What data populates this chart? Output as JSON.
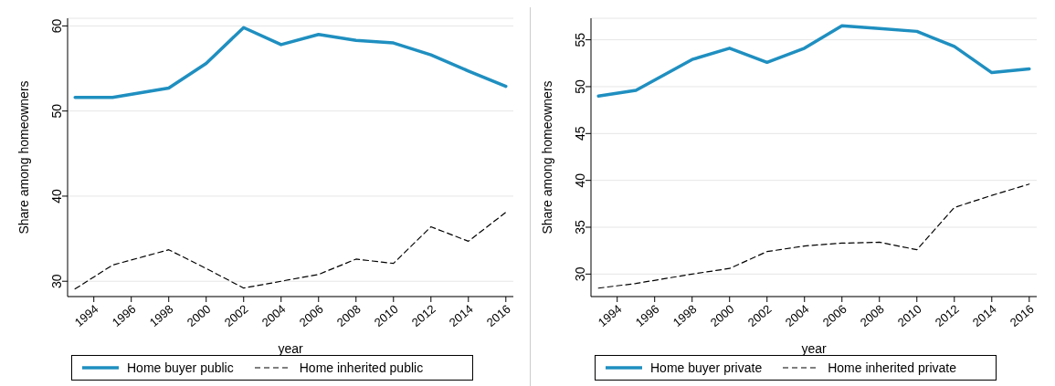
{
  "chart_data": [
    {
      "type": "line",
      "xlabel": "year",
      "ylabel": "Share among homeowners",
      "x": [
        1993,
        1995,
        1998,
        2000,
        2002,
        2004,
        2006,
        2008,
        2010,
        2012,
        2014,
        2016
      ],
      "xlim": [
        1992.6,
        2016.4
      ],
      "xticks": [
        1994,
        1996,
        1998,
        2000,
        2002,
        2004,
        2006,
        2008,
        2010,
        2012,
        2014,
        2016
      ],
      "ylim": [
        28.2,
        60.9
      ],
      "yticks": [
        30,
        40,
        50,
        60
      ],
      "grid": "y",
      "legend": "bottom",
      "marker": "none",
      "series": [
        {
          "name": "Home buyer public",
          "color": "#1f8fc0",
          "line_style": "solid",
          "values": [
            51.6,
            51.6,
            52.7,
            55.6,
            59.8,
            57.8,
            59.0,
            58.3,
            58.0,
            56.6,
            54.7,
            52.9
          ]
        },
        {
          "name": "Home inherited public",
          "color": "#000000",
          "line_style": "dashed",
          "values": [
            29.1,
            31.9,
            33.7,
            31.5,
            29.2,
            30.0,
            30.8,
            32.6,
            32.1,
            36.4,
            34.7,
            38.1
          ]
        }
      ]
    },
    {
      "type": "line",
      "xlabel": "year",
      "ylabel": "Share among homeowners",
      "x": [
        1993,
        1995,
        1998,
        2000,
        2002,
        2004,
        2006,
        2008,
        2010,
        2012,
        2014,
        2016
      ],
      "xlim": [
        1992.6,
        2016.4
      ],
      "xticks": [
        1994,
        1996,
        1998,
        2000,
        2002,
        2004,
        2006,
        2008,
        2010,
        2012,
        2014,
        2016
      ],
      "ylim": [
        27.6,
        57.3
      ],
      "yticks": [
        30,
        35,
        40,
        45,
        50,
        55
      ],
      "grid": "y",
      "legend": "bottom",
      "marker": "none",
      "series": [
        {
          "name": "Home buyer private",
          "color": "#1f8fc0",
          "line_style": "solid",
          "values": [
            49.0,
            49.6,
            52.9,
            54.1,
            52.6,
            54.1,
            56.5,
            56.2,
            55.9,
            54.3,
            51.5,
            51.9
          ]
        },
        {
          "name": "Home inherited private",
          "color": "#000000",
          "line_style": "dashed",
          "values": [
            28.5,
            29.0,
            30.0,
            30.6,
            32.4,
            33.0,
            33.3,
            33.4,
            32.6,
            37.1,
            38.4,
            39.6
          ]
        }
      ]
    }
  ]
}
